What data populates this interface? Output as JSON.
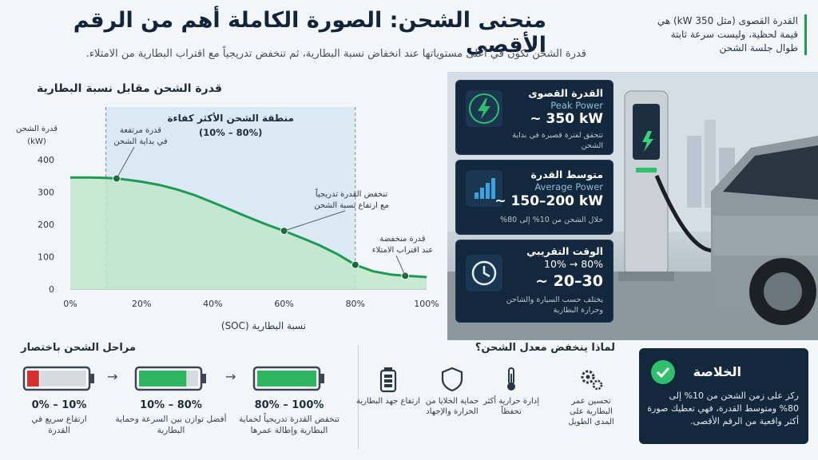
{
  "header": {
    "title": "منحنى الشحن: الصورة الكاملة أهم من الرقم الأقصى",
    "subtitle": "قدرة الشحن تكون في أعلى مستوياتها عند انخفاض نسبة البطارية، ثم تنخفض تدريجياً مع اقتراب البطارية من الامتلاء."
  },
  "note": "القدرة القصوى (مثل 350 kW) هي قيمة لحظية، وليست سرعة ثابتة طوال جلسة الشحن",
  "chart_data": {
    "type": "area",
    "title": "قدرة الشحن مقابل نسبة البطارية",
    "ylabel": "قدرة الشحن (kW)",
    "xlabel": "نسبة البطارية (SOC)",
    "x_ticks": [
      "0%",
      "20%",
      "40%",
      "60%",
      "80%",
      "100%"
    ],
    "y_ticks": [
      0,
      100,
      200,
      300,
      400
    ],
    "xlim": [
      0,
      100
    ],
    "ylim": [
      0,
      400
    ],
    "x": [
      0,
      5,
      10,
      13,
      16,
      20,
      25,
      30,
      35,
      40,
      45,
      50,
      55,
      60,
      65,
      70,
      75,
      80,
      85,
      90,
      93,
      96,
      100
    ],
    "values": [
      345,
      345,
      344,
      342,
      338,
      332,
      322,
      308,
      290,
      268,
      245,
      222,
      200,
      180,
      158,
      135,
      108,
      75,
      55,
      45,
      42,
      40,
      37
    ],
    "line_color": "#1e9a52",
    "fill_color": "#bfe6cb",
    "zone": {
      "range": [
        10,
        80
      ],
      "title": "منطقة الشحن الأكثر كفاءة",
      "label": "(10% – 80%)"
    },
    "annotations": [
      {
        "x": 13,
        "y": 342,
        "text": [
          "قدرة مرتفعة",
          "في بداية الشحن"
        ]
      },
      {
        "x": 60,
        "y": 180,
        "text": [
          "تنخفض القدرة تدريجياً",
          "مع ارتفاع نسبة الشحن"
        ]
      },
      {
        "x": 80,
        "y": 75,
        "text": []
      },
      {
        "x": 94,
        "y": 41,
        "text": [
          "قدرة منخفضة",
          "عند اقتراب الامتلاء"
        ]
      }
    ],
    "grid": false
  },
  "cards": [
    {
      "ar": "القدرة القصوى",
      "en": "Peak Power",
      "value": "~ 350 kW",
      "small": "تتحقق لفترة قصيرة في بداية الشحن",
      "icon": "bolt-icon"
    },
    {
      "ar": "متوسط القدرة",
      "en": "Average Power",
      "value": "~ 150–200 kW",
      "small": "خلال الشحن من 10% إلى 80%",
      "icon": "bar-chart-icon"
    },
    {
      "ar": "الوقت التقريبي",
      "en": "10% → 80%",
      "value": "~ 20–30",
      "small": "يختلف حسب السيارة والشاحن وحرارة البطارية",
      "icon": "clock-icon"
    }
  ],
  "stages": {
    "title": "مراحل الشحن باختصار",
    "items": [
      {
        "range": "0% – 10%",
        "desc": "ارتفاع سريع في القدرة",
        "fill": 0.2,
        "color": "#d62f2f"
      },
      {
        "range": "10% – 80%",
        "desc": "أفضل توازن بين السرعة وحماية البطارية",
        "fill": 0.8,
        "color": "#2fb560"
      },
      {
        "range": "80% – 100%",
        "desc": "تنخفض القدرة تدريجياً لحماية البطارية وإطالة عمرها",
        "fill": 1.0,
        "color": "#2fb560"
      }
    ]
  },
  "why": {
    "title": "لماذا ينخفض معدل الشحن؟",
    "items": [
      {
        "text": "ارتفاع جهد البطارية",
        "icon": "battery-icon"
      },
      {
        "text": "حماية الخلايا من الحرارة والإجهاد",
        "icon": "shield-icon"
      },
      {
        "text": "إدارة حرارية أكثر تحفظاً",
        "icon": "thermometer-icon"
      },
      {
        "text": "تحسين عمر البطارية على المدى الطويل",
        "icon": "gears-icon"
      }
    ]
  },
  "summary": {
    "title": "الخلاصة",
    "text": "ركز على زمن الشحن من 10% إلى 80% ومتوسط القدرة، فهي تعطيك صورة أكثر واقعية من الرقم الأقصى."
  }
}
